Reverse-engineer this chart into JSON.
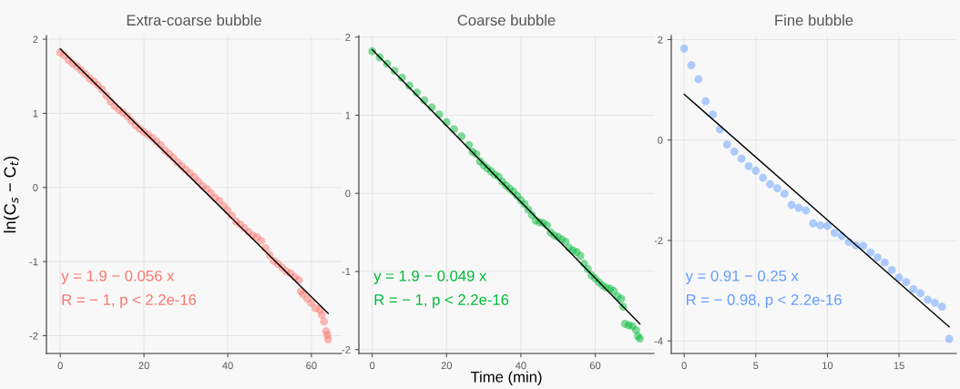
{
  "chart_data": [
    {
      "type": "scatter",
      "title": "Extra-coarse bubble",
      "ylabel": "ln(C$_{s}$ − C$_{t}$)",
      "xlim": [
        -3.3,
        67.2
      ],
      "ylim": [
        -2.24,
        2.05
      ],
      "xticks": [
        0,
        20,
        40,
        60
      ],
      "yticks": [
        -2,
        -1,
        0,
        1,
        2
      ],
      "grid": true,
      "legend": false,
      "marker": "circle",
      "annotations": [
        "y = 1.9 − 0.056 x",
        "R = − 1, p < 2.2e-16"
      ],
      "series": [
        {
          "color": "#f8766d",
          "x": [
            0,
            1,
            2,
            3,
            4,
            5,
            6,
            7,
            8,
            9,
            10,
            11,
            12,
            13,
            14,
            15,
            16,
            17,
            18,
            19,
            20,
            21,
            22,
            23,
            24,
            25,
            26,
            27,
            28,
            29,
            30,
            31,
            32,
            33,
            34,
            35,
            36,
            37,
            38,
            39,
            40,
            41,
            42,
            43,
            44,
            45,
            46,
            47,
            48,
            49,
            50,
            51,
            52,
            53,
            54,
            55,
            56,
            57,
            57.5,
            58,
            59,
            60,
            61,
            62,
            62.5,
            63,
            63.5,
            63.8,
            64
          ],
          "values": [
            1.82,
            1.78,
            1.72,
            1.67,
            1.63,
            1.58,
            1.53,
            1.47,
            1.43,
            1.38,
            1.32,
            1.24,
            1.16,
            1.1,
            1.05,
            1.01,
            0.96,
            0.9,
            0.84,
            0.79,
            0.75,
            0.71,
            0.67,
            0.62,
            0.57,
            0.5,
            0.45,
            0.4,
            0.34,
            0.29,
            0.24,
            0.19,
            0.14,
            0.08,
            0.02,
            -0.02,
            -0.08,
            -0.14,
            -0.18,
            -0.25,
            -0.31,
            -0.38,
            -0.46,
            -0.5,
            -0.55,
            -0.6,
            -0.65,
            -0.67,
            -0.72,
            -0.82,
            -0.91,
            -0.99,
            -1.03,
            -1.08,
            -1.13,
            -1.16,
            -1.21,
            -1.25,
            -1.4,
            -1.44,
            -1.5,
            -1.56,
            -1.63,
            -1.65,
            -1.72,
            -1.81,
            -1.94,
            -1.99,
            -2.05
          ]
        },
        {
          "type": "line",
          "marker": "none",
          "color": "#000000",
          "x": [
            0,
            64
          ],
          "values": [
            1.87,
            -1.7
          ]
        }
      ]
    },
    {
      "type": "scatter",
      "title": "Coarse bubble",
      "xlabel": "Time (min)",
      "xlim": [
        -3.6,
        75.8
      ],
      "ylim": [
        -2.05,
        2.02
      ],
      "xticks": [
        0,
        20,
        40,
        60
      ],
      "yticks": [
        -2,
        -1,
        0,
        1,
        2
      ],
      "grid": true,
      "legend": false,
      "marker": "circle",
      "annotations": [
        "y = 1.9 − 0.049 x",
        "R = − 1, p < 2.2e-16"
      ],
      "series": [
        {
          "color": "#00ba38",
          "x": [
            0,
            2,
            4,
            6,
            8,
            10,
            12,
            14,
            16,
            18,
            20,
            22,
            24,
            26,
            27,
            28,
            29,
            30,
            31,
            32,
            33,
            34,
            35,
            36,
            37,
            38,
            39,
            40,
            41,
            42,
            43,
            44,
            45,
            46,
            47,
            48,
            49,
            50,
            51,
            52,
            53,
            54,
            55,
            56,
            57,
            58,
            59,
            60,
            61,
            62,
            63,
            64,
            65,
            66,
            67,
            67.5,
            68,
            69,
            70,
            71,
            71.5,
            72
          ],
          "values": [
            1.82,
            1.74,
            1.66,
            1.57,
            1.48,
            1.38,
            1.29,
            1.19,
            1.1,
            1.01,
            0.91,
            0.82,
            0.73,
            0.62,
            0.53,
            0.5,
            0.41,
            0.36,
            0.32,
            0.28,
            0.24,
            0.21,
            0.15,
            0.1,
            0.06,
            0.02,
            -0.03,
            -0.09,
            -0.14,
            -0.21,
            -0.28,
            -0.35,
            -0.37,
            -0.38,
            -0.41,
            -0.5,
            -0.54,
            -0.56,
            -0.59,
            -0.62,
            -0.7,
            -0.73,
            -0.75,
            -0.8,
            -0.9,
            -0.97,
            -1.05,
            -1.09,
            -1.14,
            -1.18,
            -1.21,
            -1.22,
            -1.25,
            -1.32,
            -1.35,
            -1.45,
            -1.67,
            -1.69,
            -1.7,
            -1.75,
            -1.83,
            -1.86
          ]
        },
        {
          "type": "line",
          "marker": "none",
          "color": "#000000",
          "x": [
            0,
            72
          ],
          "values": [
            1.84,
            -1.67
          ]
        }
      ]
    },
    {
      "type": "scatter",
      "title": "Fine bubble",
      "xlim": [
        -0.9,
        19.0
      ],
      "ylim": [
        -4.25,
        2.08
      ],
      "xticks": [
        0,
        5,
        10,
        15
      ],
      "yticks": [
        -4,
        -2,
        0,
        2
      ],
      "grid": true,
      "legend": false,
      "marker": "circle",
      "annotations": [
        "y = 0.91 − 0.25 x",
        "R = − 0.98, p < 2.2e-16"
      ],
      "series": [
        {
          "color": "#619cff",
          "x": [
            0,
            0.5,
            1,
            1.5,
            2,
            2.5,
            3,
            3.5,
            4,
            4.5,
            5,
            5.5,
            6,
            6.5,
            7,
            7.5,
            8,
            8.5,
            9,
            9.5,
            10,
            10.5,
            11,
            11.5,
            12,
            12.5,
            13,
            13.5,
            14,
            14.5,
            15,
            15.5,
            16,
            16.5,
            17,
            17.5,
            18,
            18.5
          ],
          "values": [
            1.82,
            1.49,
            1.21,
            0.77,
            0.51,
            0.21,
            -0.09,
            -0.23,
            -0.37,
            -0.52,
            -0.61,
            -0.75,
            -0.88,
            -0.96,
            -1.07,
            -1.29,
            -1.35,
            -1.4,
            -1.66,
            -1.7,
            -1.71,
            -1.85,
            -1.91,
            -2.03,
            -2.1,
            -2.11,
            -2.24,
            -2.34,
            -2.44,
            -2.59,
            -2.74,
            -2.83,
            -2.97,
            -3.05,
            -3.18,
            -3.24,
            -3.32,
            -3.96
          ]
        },
        {
          "type": "line",
          "marker": "none",
          "color": "#000000",
          "x": [
            0,
            18.5
          ],
          "values": [
            0.91,
            -3.72
          ]
        }
      ]
    }
  ]
}
